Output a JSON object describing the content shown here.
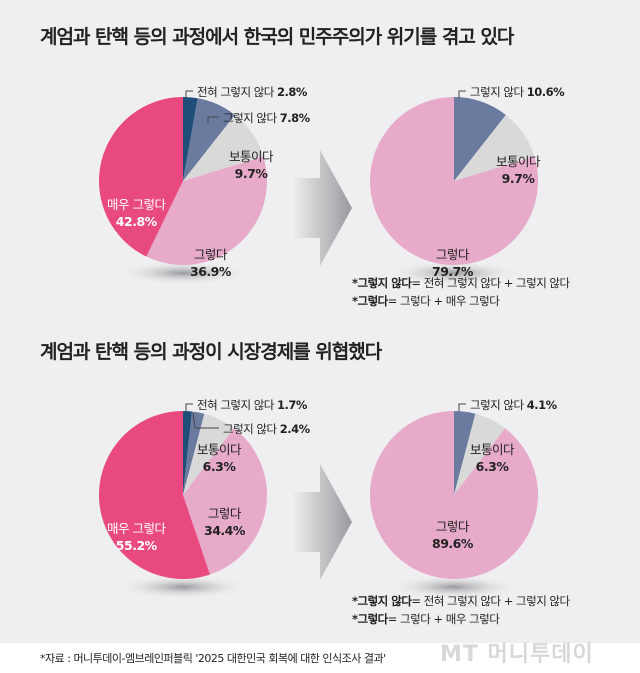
{
  "colors": {
    "strongly_disagree": "#1f4e79",
    "disagree": "#6b7a9f",
    "neutral": "#d9d9d9",
    "agree": "#e7aac9",
    "strongly_agree": "#e84a7f"
  },
  "chart_data": [
    {
      "type": "pie",
      "title": "계엄과 탄핵 등의 과정에서 한국의 민주주의가 위기를 겪고 있다",
      "detail": {
        "slices": [
          {
            "label": "전혀 그렇지 않다",
            "value": 2.8,
            "value_label": "2.8%",
            "key": "strongly_disagree"
          },
          {
            "label": "그렇지 않다",
            "value": 7.8,
            "value_label": "7.8%",
            "key": "disagree"
          },
          {
            "label": "보통이다",
            "value": 9.7,
            "value_label": "9.7%",
            "key": "neutral"
          },
          {
            "label": "그렇다",
            "value": 36.9,
            "value_label": "36.9%",
            "key": "agree"
          },
          {
            "label": "매우 그렇다",
            "value": 42.8,
            "value_label": "42.8%",
            "key": "strongly_agree"
          }
        ]
      },
      "summary": {
        "slices": [
          {
            "label": "그렇지 않다",
            "value": 10.6,
            "value_label": "10.6%",
            "key": "disagree"
          },
          {
            "label": "보통이다",
            "value": 9.7,
            "value_label": "9.7%",
            "key": "neutral"
          },
          {
            "label": "그렇다",
            "value": 79.7,
            "value_label": "79.7%",
            "key": "agree"
          }
        ]
      },
      "notes": [
        {
          "bold": "*그렇지 않다",
          "rest": "= 전혀 그렇지 않다 + 그렇지 않다"
        },
        {
          "bold": "*그렇다",
          "rest": "= 그렇다 + 매우 그렇다"
        }
      ]
    },
    {
      "type": "pie",
      "title": "계엄과 탄핵 등의 과정이 시장경제를 위협했다",
      "detail": {
        "slices": [
          {
            "label": "전혀 그렇지 않다",
            "value": 1.7,
            "value_label": "1.7%",
            "key": "strongly_disagree"
          },
          {
            "label": "그렇지 않다",
            "value": 2.4,
            "value_label": "2.4%",
            "key": "disagree"
          },
          {
            "label": "보통이다",
            "value": 6.3,
            "value_label": "6.3%",
            "key": "neutral"
          },
          {
            "label": "그렇다",
            "value": 34.4,
            "value_label": "34.4%",
            "key": "agree"
          },
          {
            "label": "매우 그렇다",
            "value": 55.2,
            "value_label": "55.2%",
            "key": "strongly_agree"
          }
        ]
      },
      "summary": {
        "slices": [
          {
            "label": "그렇지 않다",
            "value": 4.1,
            "value_label": "4.1%",
            "key": "disagree"
          },
          {
            "label": "보통이다",
            "value": 6.3,
            "value_label": "6.3%",
            "key": "neutral"
          },
          {
            "label": "그렇다",
            "value": 89.6,
            "value_label": "89.6%",
            "key": "agree"
          }
        ]
      },
      "notes": [
        {
          "bold": "*그렇지 않다",
          "rest": "= 전혀 그렇지 않다 + 그렇지 않다"
        },
        {
          "bold": "*그렇다",
          "rest": "= 그렇다 + 매우 그렇다"
        }
      ]
    }
  ],
  "footer": "*자료 : 머니투데이-엠브레인퍼블릭 '2025 대한민국 회복에 대한 인식조사 결과'",
  "logo": "MT 머니투데이"
}
